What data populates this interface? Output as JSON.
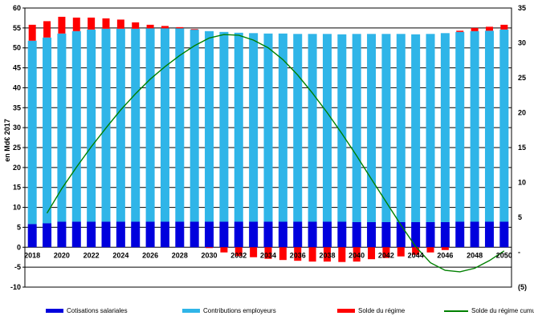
{
  "chart_data": {
    "type": "bar",
    "subtype": "stacked-bars-with-line",
    "years": [
      2018,
      2019,
      2020,
      2021,
      2022,
      2023,
      2024,
      2025,
      2026,
      2027,
      2028,
      2029,
      2030,
      2031,
      2032,
      2033,
      2034,
      2035,
      2036,
      2037,
      2038,
      2039,
      2040,
      2041,
      2042,
      2043,
      2044,
      2045,
      2046,
      2047,
      2048,
      2049,
      2050
    ],
    "series": [
      {
        "name": "Cotisations salariales",
        "type": "bar",
        "axis": "left",
        "color": "#0000DD",
        "values": [
          5.8,
          6.0,
          6.4,
          6.4,
          6.4,
          6.4,
          6.4,
          6.4,
          6.4,
          6.4,
          6.4,
          6.4,
          6.4,
          6.4,
          6.4,
          6.4,
          6.4,
          6.4,
          6.4,
          6.4,
          6.4,
          6.4,
          6.3,
          6.3,
          6.3,
          6.3,
          6.3,
          6.3,
          6.3,
          6.4,
          6.4,
          6.4,
          6.4
        ]
      },
      {
        "name": "Contributions employeurs",
        "type": "bar",
        "axis": "left",
        "color": "#2FB5E8",
        "values": [
          46.0,
          46.6,
          47.2,
          47.8,
          48.2,
          48.4,
          48.4,
          48.4,
          48.5,
          48.5,
          48.5,
          48.2,
          47.8,
          47.6,
          47.4,
          47.3,
          47.2,
          47.2,
          47.1,
          47.1,
          47.1,
          47.0,
          47.2,
          47.2,
          47.2,
          47.2,
          47.1,
          47.2,
          47.4,
          47.6,
          47.8,
          47.9,
          48.2
        ]
      },
      {
        "name": "Solde du régime",
        "type": "bar",
        "axis": "left",
        "color": "#FF0000",
        "values": [
          4.0,
          4.1,
          4.2,
          3.4,
          3.0,
          2.6,
          2.3,
          1.6,
          0.9,
          0.6,
          0.3,
          0.1,
          -0.2,
          -1.3,
          -2.2,
          -2.5,
          -2.9,
          -3.2,
          -3.4,
          -3.6,
          -3.6,
          -3.7,
          -3.6,
          -3.0,
          -2.7,
          -2.3,
          -1.9,
          -1.3,
          -0.7,
          0.3,
          0.8,
          1.0,
          1.2
        ]
      },
      {
        "name": "Solde du régime cumulé actualisé (échelle de droite)",
        "type": "line",
        "axis": "right",
        "color": "#008000",
        "start_year": 2019,
        "values": [
          5.6,
          9.1,
          12.2,
          15.1,
          17.8,
          20.4,
          22.7,
          24.8,
          26.6,
          28.2,
          29.6,
          30.7,
          31.2,
          31.1,
          30.4,
          29.3,
          27.6,
          25.4,
          22.8,
          20.0,
          17.0,
          13.8,
          10.5,
          7.2,
          3.9,
          0.8,
          -1.5,
          -2.6,
          -2.8,
          -2.3,
          -1.2,
          0.2
        ]
      }
    ],
    "left_axis": {
      "title": "en Md€ 2017",
      "min": -10,
      "max": 60,
      "step": 5,
      "tick_labels": [
        "60",
        "55",
        "50",
        "45",
        "40",
        "35",
        "30",
        "25",
        "20",
        "15",
        "10",
        "5",
        "0",
        "-5",
        "-10"
      ]
    },
    "right_axis": {
      "min": -5,
      "max": 35,
      "step": 5,
      "tick_labels": [
        "35",
        "30",
        "25",
        "20",
        "15",
        "10",
        "5",
        "-",
        "(5)"
      ]
    },
    "x_axis": {
      "tick_labels": [
        "2018",
        "2020",
        "2022",
        "2024",
        "2026",
        "2028",
        "2030",
        "2032",
        "2034",
        "2036",
        "2038",
        "2040",
        "2042",
        "2044",
        "2046",
        "2048",
        "2050"
      ]
    },
    "grid": true,
    "legend_position": "bottom"
  }
}
